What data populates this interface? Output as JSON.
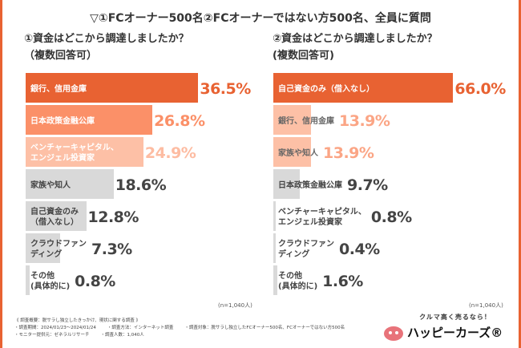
{
  "header": {
    "title": "▽①FCオーナー500名②FCオーナーではない方500名、全員に質問"
  },
  "colors": {
    "accent": "#e86232",
    "mid": "#fb9068",
    "light": "#fdc0a6",
    "gray": "#d9d9d9"
  },
  "chart_data": [
    {
      "type": "bar",
      "orientation": "horizontal",
      "title": "①資金はどこから調達しましたか？",
      "subtitle": "（複数回答可）",
      "note": "(n=1,040人)",
      "categories": [
        "銀行、信用金庫",
        "日本政策金融公庫",
        "ベンチャーキャピタル、\nエンジェル投資家",
        "家族や知人",
        "自己資金のみ\n（借入なし）",
        "クラウドファン\nディング",
        "その他\n(具体的に)"
      ],
      "values": [
        36.5,
        26.8,
        24.9,
        18.6,
        12.8,
        7.3,
        0.8
      ],
      "labels": [
        "36.5%",
        "26.8%",
        "24.9%",
        "18.6%",
        "12.8%",
        "7.3%",
        "0.8%"
      ],
      "bar_colors": [
        "#e86232",
        "#fb9068",
        "#fdc0a6",
        "#d9d9d9",
        "#d9d9d9",
        "#d9d9d9",
        "#d9d9d9"
      ],
      "value_colors": [
        "#e86232",
        "#fb9068",
        "#fdbca2",
        "#444444",
        "#444444",
        "#444444",
        "#444444"
      ],
      "label_colors": [
        "#ffffff",
        "#ffffff",
        "#ffffff",
        "#444444",
        "#444444",
        "#444444",
        "#444444"
      ]
    },
    {
      "type": "bar",
      "orientation": "horizontal",
      "title": "②資金はどこから調達しましたか？",
      "subtitle": "(複数回答可)",
      "note": "(n=1,040人)",
      "categories": [
        "自己資金のみ（借入なし）",
        "銀行、信用金庫",
        "家族や知人",
        "日本政策金融公庫",
        "ベンチャーキャピタル、\nエンジェル投資家",
        "クラウドファン\nディング",
        "その他\n(具体的に)"
      ],
      "values": [
        66.0,
        13.9,
        13.9,
        9.7,
        0.8,
        0.4,
        1.6
      ],
      "labels": [
        "66.0%",
        "13.9%",
        "13.9%",
        "9.7%",
        "0.8%",
        "0.4%",
        "1.6%"
      ],
      "bar_colors": [
        "#e86232",
        "#fdc0a6",
        "#fdc0a6",
        "#d9d9d9",
        "#d9d9d9",
        "#d9d9d9",
        "#d9d9d9"
      ],
      "value_colors": [
        "#e86232",
        "#fba585",
        "#fba585",
        "#444444",
        "#444444",
        "#444444",
        "#444444"
      ],
      "label_colors": [
        "#ffffff",
        "#666666",
        "#666666",
        "#444444",
        "#444444",
        "#444444",
        "#444444"
      ]
    }
  ],
  "footer": {
    "summary": "《 調査概要：脱サラし独立したきっかけ、現状に関する調査 》",
    "period": "・調査期間：2024/01/23〜2024/01/24",
    "method": "・調査方法：インターネット調査",
    "target": "・調査対象：脱サラし独立したFCオーナー500名、FCオーナーではない方500名",
    "provider": "・モニター提供元：ゼネラルリサーチ",
    "count": "・調査人数：1,040人"
  },
  "brand": {
    "tagline": "クルマ高く売るなら！",
    "name": "ハッピーカーズ®"
  }
}
